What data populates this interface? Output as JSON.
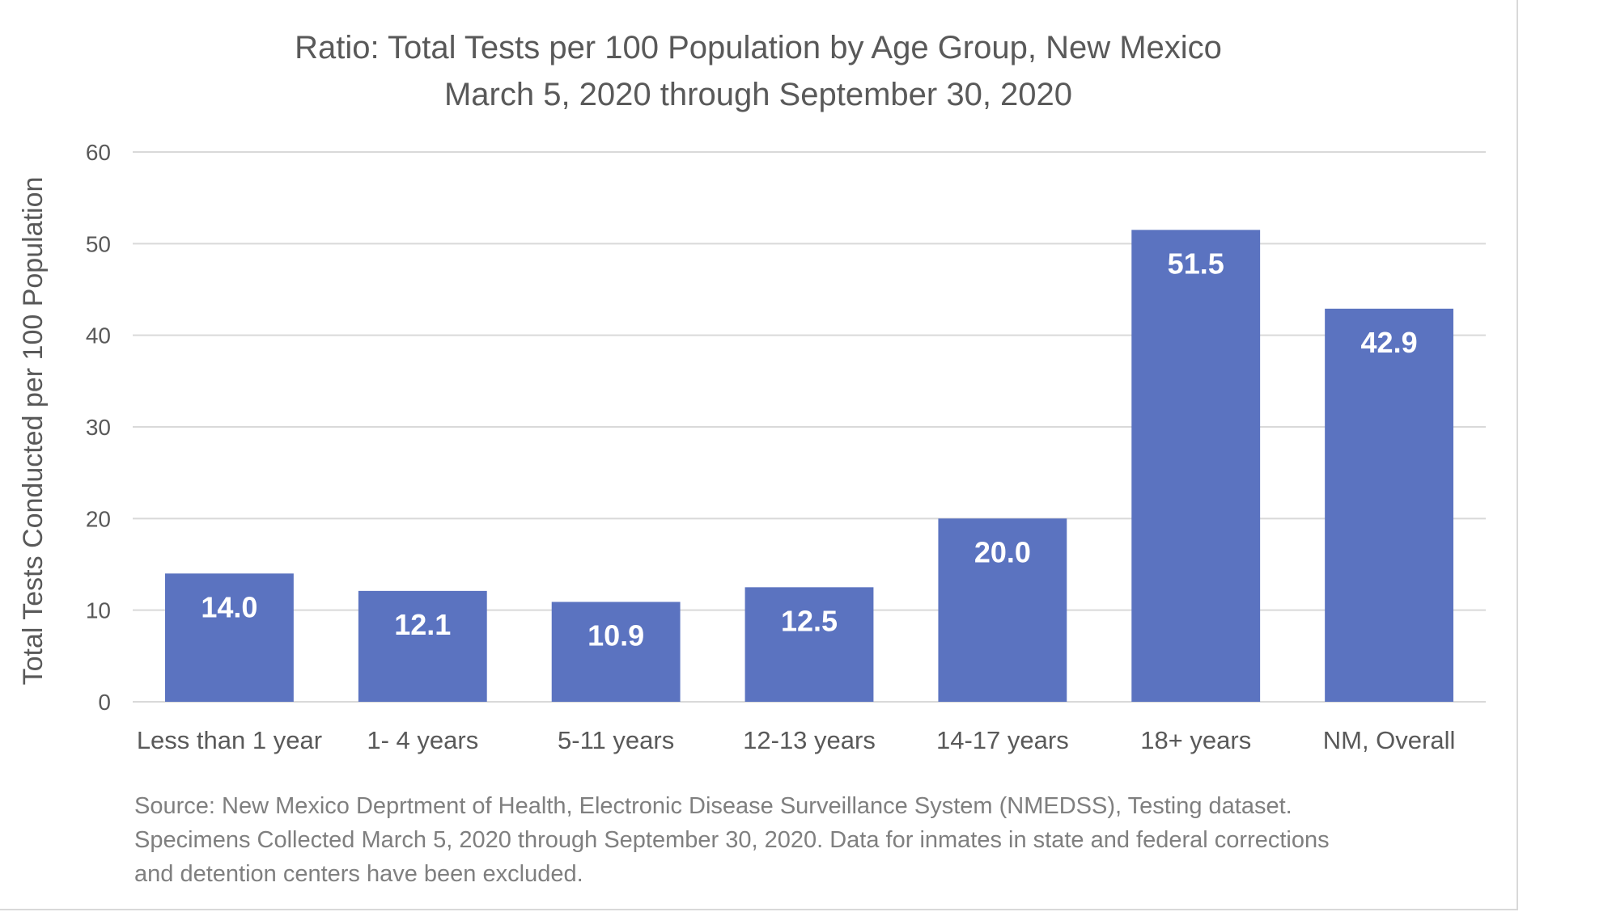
{
  "chart_data": {
    "type": "bar",
    "title": "Ratio: Total Tests per 100 Population by Age Group, New Mexico",
    "subtitle": "March 5, 2020 through September 30, 2020",
    "xlabel": "",
    "ylabel": "Total Tests Conducted per 100 Population",
    "ylim": [
      0,
      60
    ],
    "yticks": [
      0,
      10,
      20,
      30,
      40,
      50,
      60
    ],
    "grid": true,
    "categories": [
      "Less than 1 year",
      "1- 4 years",
      "5-11 years",
      "12-13 years",
      "14-17 years",
      "18+ years",
      "NM, Overall"
    ],
    "values": [
      14.0,
      12.1,
      10.9,
      12.5,
      20.0,
      51.5,
      42.9
    ],
    "data_labels": [
      "14.0",
      "12.1",
      "10.9",
      "12.5",
      "20.0",
      "51.5",
      "42.9"
    ],
    "colors": {
      "bar": "#5b73c0",
      "grid": "#d9d9d9",
      "text": "#595959",
      "label": "#ffffff"
    }
  },
  "footnote": {
    "lines": [
      "Source: New Mexico Deprtment of Health, Electronic Disease Surveillance System (NMEDSS), Testing dataset.",
      "Specimens Collected March 5, 2020 through September 30, 2020. Data for inmates in state and federal corrections",
      "and detention centers have been excluded."
    ]
  }
}
